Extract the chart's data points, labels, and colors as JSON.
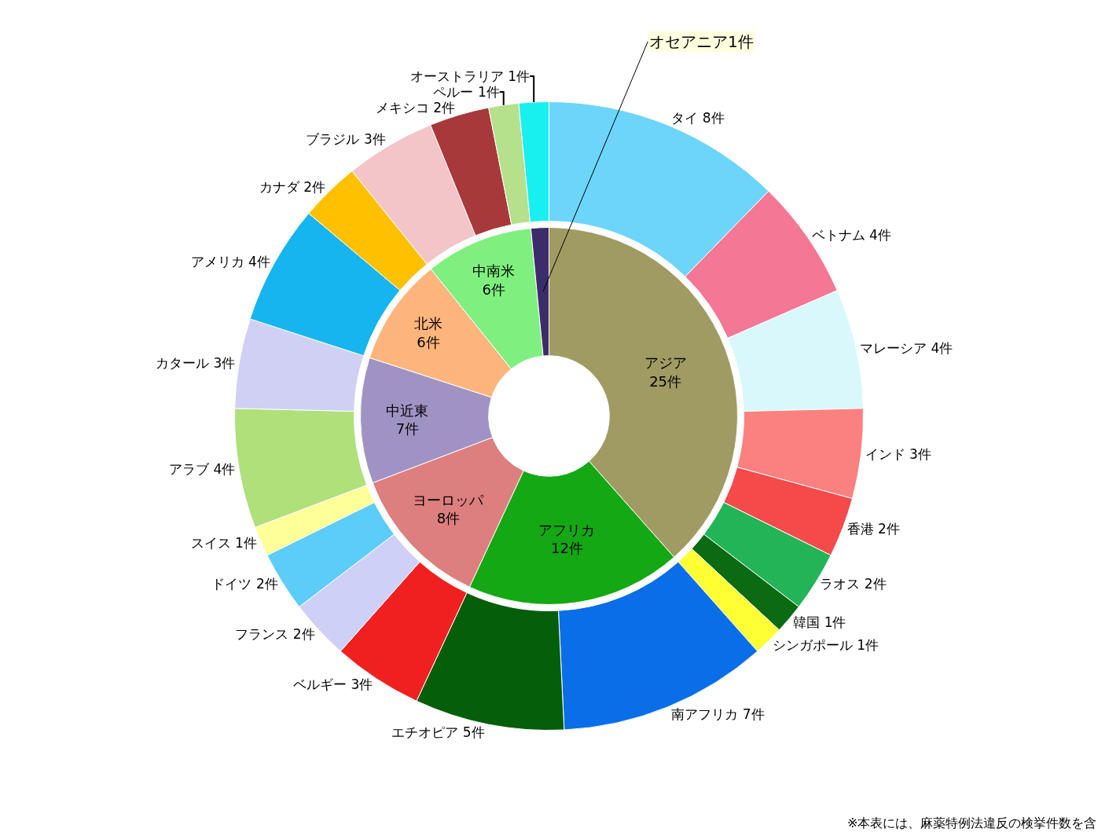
{
  "chart_data": [
    {
      "type": "donut",
      "categories": [
        "アジア",
        "アフリカ",
        "ヨーロッパ",
        "中近東",
        "北米",
        "中南米",
        "オセアニア"
      ],
      "values": [
        25,
        12,
        8,
        7,
        6,
        6,
        1
      ],
      "value_labels": [
        "25件",
        "12件",
        "8件",
        "7件",
        "6件",
        "6件",
        "1件"
      ],
      "colors": [
        "#a09b62",
        "#14a814",
        "#dc7f7e",
        "#a093c4",
        "#fdb57b",
        "#7ff07f",
        "#3d2c6c"
      ]
    },
    {
      "type": "donut",
      "categories": [
        "タイ",
        "ベトナム",
        "マレーシア",
        "インド",
        "香港",
        "ラオス",
        "韓国",
        "シンガポール",
        "南アフリカ",
        "エチオピア",
        "ベルギー",
        "フランス",
        "ドイツ",
        "スイス",
        "アラブ",
        "カタール",
        "アメリカ",
        "カナダ",
        "ブラジル",
        "メキシコ",
        "ペルー",
        "オーストラリア"
      ],
      "values": [
        8,
        4,
        4,
        3,
        2,
        2,
        1,
        1,
        7,
        5,
        3,
        2,
        2,
        1,
        4,
        3,
        4,
        2,
        3,
        2,
        1,
        1
      ],
      "value_labels": [
        "8件",
        "4件",
        "4件",
        "3件",
        "2件",
        "2件",
        "1件",
        "1件",
        "7件",
        "5件",
        "3件",
        "2件",
        "2件",
        "1件",
        "4件",
        "3件",
        "4件",
        "2件",
        "3件",
        "2件",
        "1件",
        "1件"
      ],
      "colors": [
        "#6dd5f9",
        "#f47896",
        "#d8f8fb",
        "#fb8080",
        "#f44a4a",
        "#22b456",
        "#0b6b12",
        "#ffff33",
        "#0a6ee8",
        "#055e0a",
        "#f02020",
        "#cfd0f8",
        "#5bcdf7",
        "#ffff99",
        "#b0e07a",
        "#d0d0f5",
        "#16b5ef",
        "#ffc000",
        "#f3c4c8",
        "#a8393a",
        "#b5e08c",
        "#18f0f0"
      ],
      "annotations": [
        "※本表には、麻薬特例法違反の検挙件数を含"
      ]
    }
  ]
}
